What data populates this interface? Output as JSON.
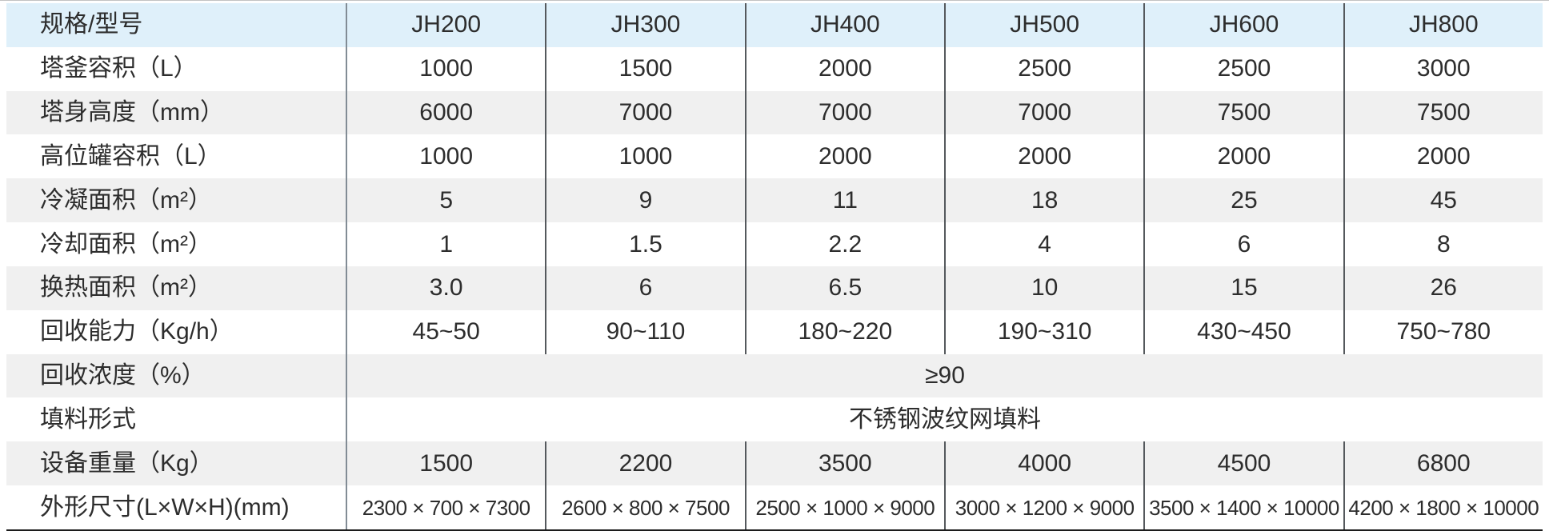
{
  "colors": {
    "header_bg": "#dff0fa",
    "zebra_bg": "#f0f0f0",
    "text": "#2d2d2d",
    "grid_line": "#55595d",
    "label_column_line": "#828c95",
    "bottom_border": "#1c1c1c"
  },
  "table": {
    "header_label": "规格/型号",
    "models": [
      "JH200",
      "JH300",
      "JH400",
      "JH500",
      "JH600",
      "JH800"
    ],
    "rows": [
      {
        "label": "塔釜容积（L）",
        "values": [
          "1000",
          "1500",
          "2000",
          "2500",
          "2500",
          "3000"
        ]
      },
      {
        "label": "塔身高度（mm）",
        "values": [
          "6000",
          "7000",
          "7000",
          "7000",
          "7500",
          "7500"
        ]
      },
      {
        "label": "高位罐容积（L）",
        "values": [
          "1000",
          "1000",
          "2000",
          "2000",
          "2000",
          "2000"
        ]
      },
      {
        "label": "冷凝面积（m²）",
        "values": [
          "5",
          "9",
          "11",
          "18",
          "25",
          "45"
        ]
      },
      {
        "label": "冷却面积（m²）",
        "values": [
          "1",
          "1.5",
          "2.2",
          "4",
          "6",
          "8"
        ]
      },
      {
        "label": "换热面积（m²）",
        "values": [
          "3.0",
          "6",
          "6.5",
          "10",
          "15",
          "26"
        ]
      },
      {
        "label": "回收能力（Kg/h）",
        "values": [
          "45~50",
          "90~110",
          "180~220",
          "190~310",
          "430~450",
          "750~780"
        ]
      },
      {
        "label": "回收浓度（%）",
        "value": "≥90"
      },
      {
        "label": "填料形式",
        "value": "不锈钢波纹网填料"
      },
      {
        "label": "设备重量（Kg）",
        "values": [
          "1500",
          "2200",
          "3500",
          "4000",
          "4500",
          "6800"
        ]
      },
      {
        "label": "外形尺寸(L×W×H)(mm)",
        "values": [
          "2300 × 700 × 7300",
          "2600 × 800 × 7500",
          "2500 × 1000 × 9000",
          "3000 × 1200 × 9000",
          "3500 × 1400 × 10000",
          "4200 × 1800 × 10000"
        ]
      }
    ]
  }
}
